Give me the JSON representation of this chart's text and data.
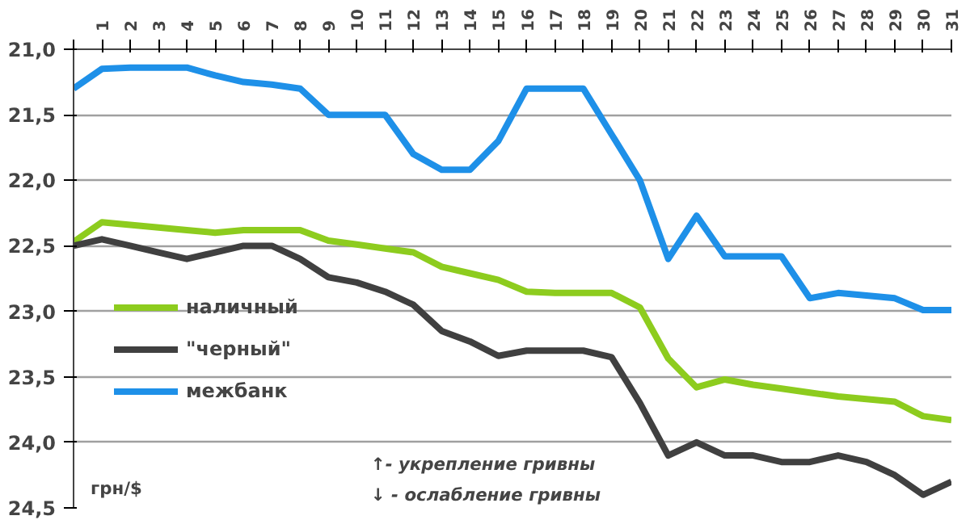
{
  "chart_data": {
    "type": "line",
    "categories": [
      null,
      "1",
      "2",
      "3",
      "4",
      "5",
      "6",
      "7",
      "8",
      "9",
      "10",
      "11",
      "12",
      "13",
      "14",
      "15",
      "16",
      "17",
      "18",
      "19",
      "20",
      "21",
      "22",
      "23",
      "24",
      "25",
      "26",
      "27",
      "28",
      "29",
      "30",
      "31"
    ],
    "series": [
      {
        "name": "наличный",
        "color": "#8dcc1e",
        "values": [
          22.47,
          22.32,
          22.34,
          22.36,
          22.38,
          22.4,
          22.38,
          22.38,
          22.38,
          22.46,
          22.49,
          22.52,
          22.55,
          22.66,
          22.71,
          22.76,
          22.85,
          22.86,
          22.86,
          22.86,
          22.97,
          23.36,
          23.58,
          23.52,
          23.56,
          23.59,
          23.62,
          23.65,
          23.67,
          23.69,
          23.8,
          23.83
        ]
      },
      {
        "name": "\"черный\"",
        "color": "#404040",
        "values": [
          22.5,
          22.45,
          22.5,
          22.55,
          22.6,
          22.55,
          22.5,
          22.5,
          22.6,
          22.74,
          22.78,
          22.85,
          22.95,
          23.15,
          23.23,
          23.34,
          23.3,
          23.3,
          23.3,
          23.35,
          23.7,
          24.1,
          24.0,
          24.1,
          24.1,
          24.15,
          24.15,
          24.1,
          24.15,
          24.25,
          24.4,
          24.3
        ]
      },
      {
        "name": "межбанк",
        "color": "#1e90e8",
        "values": [
          21.3,
          21.15,
          21.14,
          21.14,
          21.14,
          21.2,
          21.25,
          21.27,
          21.3,
          21.5,
          21.5,
          21.5,
          21.8,
          21.92,
          21.92,
          21.7,
          21.3,
          21.3,
          21.3,
          21.65,
          22.0,
          22.6,
          22.27,
          22.58,
          22.58,
          22.58,
          22.9,
          22.86,
          22.88,
          22.9,
          22.99,
          22.99
        ]
      }
    ],
    "ylim": [
      24.5,
      21.0
    ],
    "yticks": [
      {
        "value": 21.0,
        "label": "21,0"
      },
      {
        "value": 21.5,
        "label": "21,5"
      },
      {
        "value": 22.0,
        "label": "22,0"
      },
      {
        "value": 22.5,
        "label": "22,5"
      },
      {
        "value": 23.0,
        "label": "23,0"
      },
      {
        "value": 23.5,
        "label": "23,5"
      },
      {
        "value": 24.0,
        "label": "24,0"
      },
      {
        "value": 24.5,
        "label": "24,5"
      }
    ],
    "grid": "y",
    "legend": "left",
    "annotations": [
      "грн/$",
      "↑- укрепление гривны",
      "↓ - ослабление гривны"
    ]
  }
}
